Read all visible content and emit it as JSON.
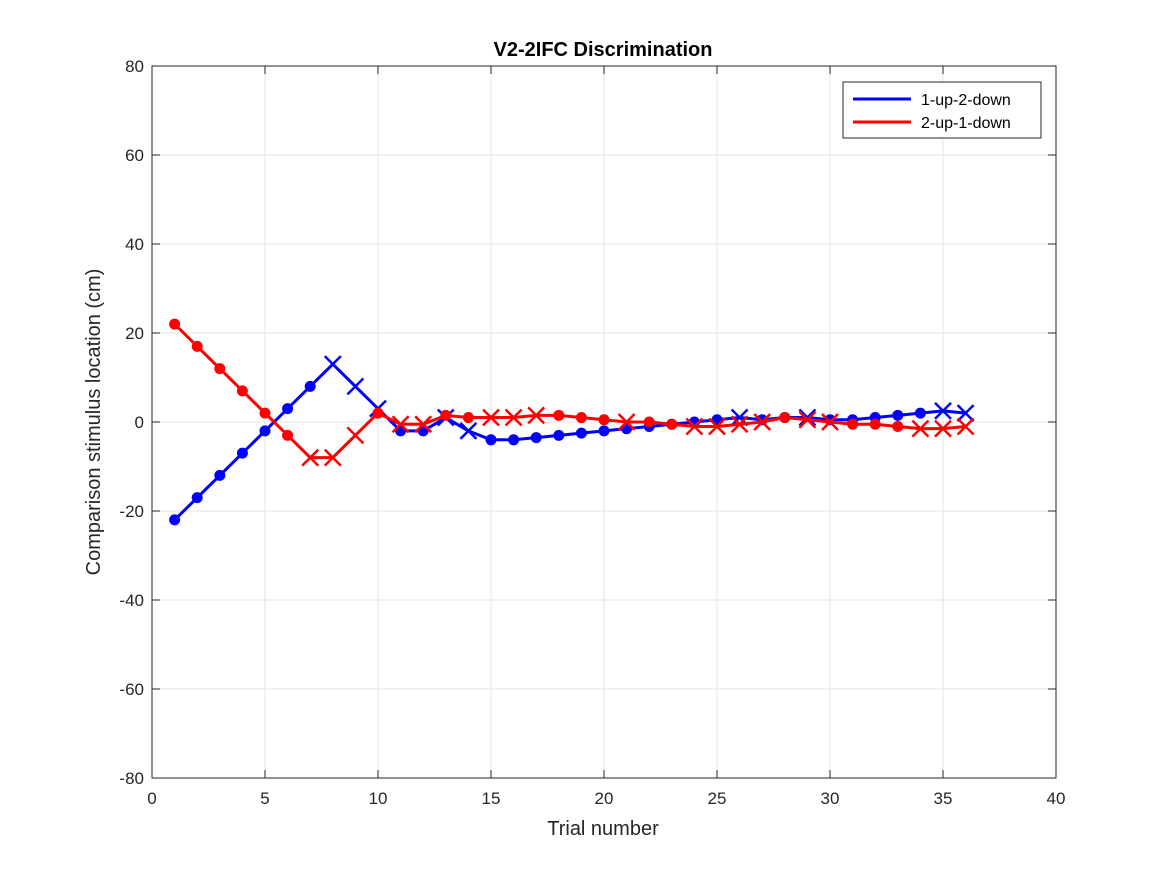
{
  "chart_data": {
    "type": "line",
    "title": "V2-2IFC Discrimination",
    "xlabel": "Trial number",
    "ylabel": "Comparison stimulus location (cm)",
    "xlim": [
      0,
      40
    ],
    "ylim": [
      -80,
      80
    ],
    "xticks": [
      0,
      5,
      10,
      15,
      20,
      25,
      30,
      35,
      40
    ],
    "yticks": [
      -80,
      -60,
      -40,
      -20,
      0,
      20,
      40,
      60,
      80
    ],
    "grid": true,
    "legend_position": "top-right",
    "marker_legend": {
      "filled_circle": "dot marker",
      "cross": "x marker"
    },
    "series": [
      {
        "name": "1-up-2-down",
        "color": "#0000ff",
        "x": [
          1,
          2,
          3,
          4,
          5,
          6,
          7,
          8,
          9,
          10,
          11,
          12,
          13,
          14,
          15,
          16,
          17,
          18,
          19,
          20,
          21,
          22,
          23,
          24,
          25,
          26,
          27,
          28,
          29,
          30,
          31,
          32,
          33,
          34,
          35,
          36
        ],
        "y": [
          -22,
          -17,
          -12,
          -7,
          -2,
          3,
          8,
          13,
          8,
          3,
          -2,
          -2,
          1,
          -2,
          -4,
          -4,
          -3.5,
          -3,
          -2.5,
          -2,
          -1.5,
          -1,
          -0.5,
          0,
          0.5,
          1,
          0.5,
          1,
          1,
          0.5,
          0.5,
          1,
          1.5,
          2,
          2.5,
          2
        ],
        "markers": [
          "o",
          "o",
          "o",
          "o",
          "o",
          "o",
          "o",
          "x",
          "x",
          "x",
          "o",
          "o",
          "x",
          "x",
          "o",
          "o",
          "o",
          "o",
          "o",
          "o",
          "o",
          "o",
          "o",
          "o",
          "o",
          "x",
          "o",
          "o",
          "x",
          "o",
          "o",
          "o",
          "o",
          "o",
          "x",
          "x"
        ]
      },
      {
        "name": "2-up-1-down",
        "color": "#ff0000",
        "x": [
          1,
          2,
          3,
          4,
          5,
          6,
          7,
          8,
          9,
          10,
          11,
          12,
          13,
          14,
          15,
          16,
          17,
          18,
          19,
          20,
          21,
          22,
          23,
          24,
          25,
          26,
          27,
          28,
          29,
          30,
          31,
          32,
          33,
          34,
          35,
          36
        ],
        "y": [
          22,
          17,
          12,
          7,
          2,
          -3,
          -8,
          -8,
          -3,
          2,
          -0.5,
          -0.5,
          1.5,
          1,
          1,
          1,
          1.5,
          1.5,
          1,
          0.5,
          0,
          0,
          -0.5,
          -1,
          -1,
          -0.5,
          0,
          1,
          0.5,
          0,
          -0.5,
          -0.5,
          -1,
          -1.5,
          -1.5,
          -1
        ],
        "markers": [
          "o",
          "o",
          "o",
          "o",
          "o",
          "o",
          "x",
          "x",
          "x",
          "o",
          "x",
          "x",
          "o",
          "o",
          "x",
          "x",
          "x",
          "o",
          "o",
          "o",
          "x",
          "o",
          "o",
          "x",
          "x",
          "x",
          "x",
          "o",
          "x",
          "x",
          "o",
          "o",
          "o",
          "x",
          "x",
          "x"
        ]
      }
    ]
  }
}
